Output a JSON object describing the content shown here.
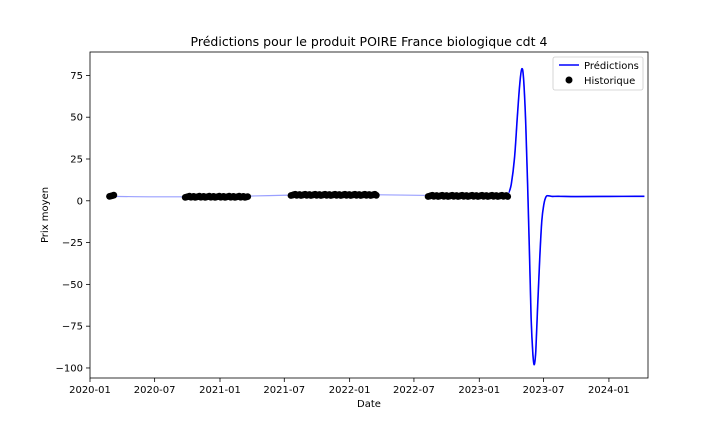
{
  "chart_data": {
    "type": "line",
    "title": "Prédictions pour le produit POIRE France biologique cdt 4",
    "xlabel": "Date",
    "ylabel": "Prix moyen",
    "xlim": [
      "2020-01-01",
      "2024-04-20"
    ],
    "ylim": [
      -106,
      89
    ],
    "x_ticks": [
      "2020-01",
      "2020-07",
      "2021-01",
      "2021-07",
      "2022-01",
      "2022-07",
      "2023-01",
      "2023-07",
      "2024-01"
    ],
    "y_ticks": [
      75,
      50,
      25,
      0,
      -25,
      -50,
      -75,
      -100
    ],
    "y_tick_labels": [
      "75",
      "50",
      "25",
      "0",
      "−25",
      "−50",
      "−75",
      "−100"
    ],
    "grid": false,
    "legend_position": "top-right",
    "series": [
      {
        "name": "Prédictions",
        "color": "#0000ff",
        "style": "line",
        "points": [
          [
            "2020-03-02",
            2.6
          ],
          [
            "2020-06-15",
            2.4
          ],
          [
            "2020-09-20",
            2.4
          ],
          [
            "2020-12-20",
            2.6
          ],
          [
            "2021-03-20",
            2.8
          ],
          [
            "2021-07-15",
            3.4
          ],
          [
            "2021-10-15",
            3.6
          ],
          [
            "2022-01-15",
            3.6
          ],
          [
            "2022-03-25",
            3.6
          ],
          [
            "2022-07-15",
            3.3
          ],
          [
            "2022-10-15",
            3.1
          ],
          [
            "2023-01-15",
            3.2
          ],
          [
            "2023-03-01",
            3.3
          ],
          [
            "2023-03-15",
            3.5
          ],
          [
            "2023-03-25",
            5
          ],
          [
            "2023-04-01",
            10
          ],
          [
            "2023-04-10",
            25
          ],
          [
            "2023-04-18",
            50
          ],
          [
            "2023-04-25",
            70
          ],
          [
            "2023-05-01",
            79
          ],
          [
            "2023-05-06",
            72
          ],
          [
            "2023-05-12",
            45
          ],
          [
            "2023-05-17",
            10
          ],
          [
            "2023-05-22",
            -30
          ],
          [
            "2023-05-27",
            -70
          ],
          [
            "2023-06-01",
            -92
          ],
          [
            "2023-06-05",
            -98
          ],
          [
            "2023-06-09",
            -90
          ],
          [
            "2023-06-14",
            -65
          ],
          [
            "2023-06-20",
            -35
          ],
          [
            "2023-06-26",
            -12
          ],
          [
            "2023-07-02",
            -2
          ],
          [
            "2023-07-08",
            2.5
          ],
          [
            "2023-07-15",
            3.0
          ],
          [
            "2023-07-25",
            2.6
          ],
          [
            "2023-08-15",
            2.7
          ],
          [
            "2023-10-01",
            2.5
          ],
          [
            "2024-01-01",
            2.6
          ],
          [
            "2024-04-10",
            2.7
          ]
        ]
      },
      {
        "name": "Historique",
        "color": "#000000",
        "style": "markers",
        "ranges": [
          {
            "from": "2020-02-25",
            "to": "2020-03-08",
            "value": 3.0
          },
          {
            "from": "2020-09-25",
            "to": "2021-03-20",
            "value": 2.4
          },
          {
            "from": "2021-07-20",
            "to": "2022-03-20",
            "value": 3.5
          },
          {
            "from": "2022-08-10",
            "to": "2023-03-25",
            "value": 2.9
          }
        ]
      }
    ]
  }
}
